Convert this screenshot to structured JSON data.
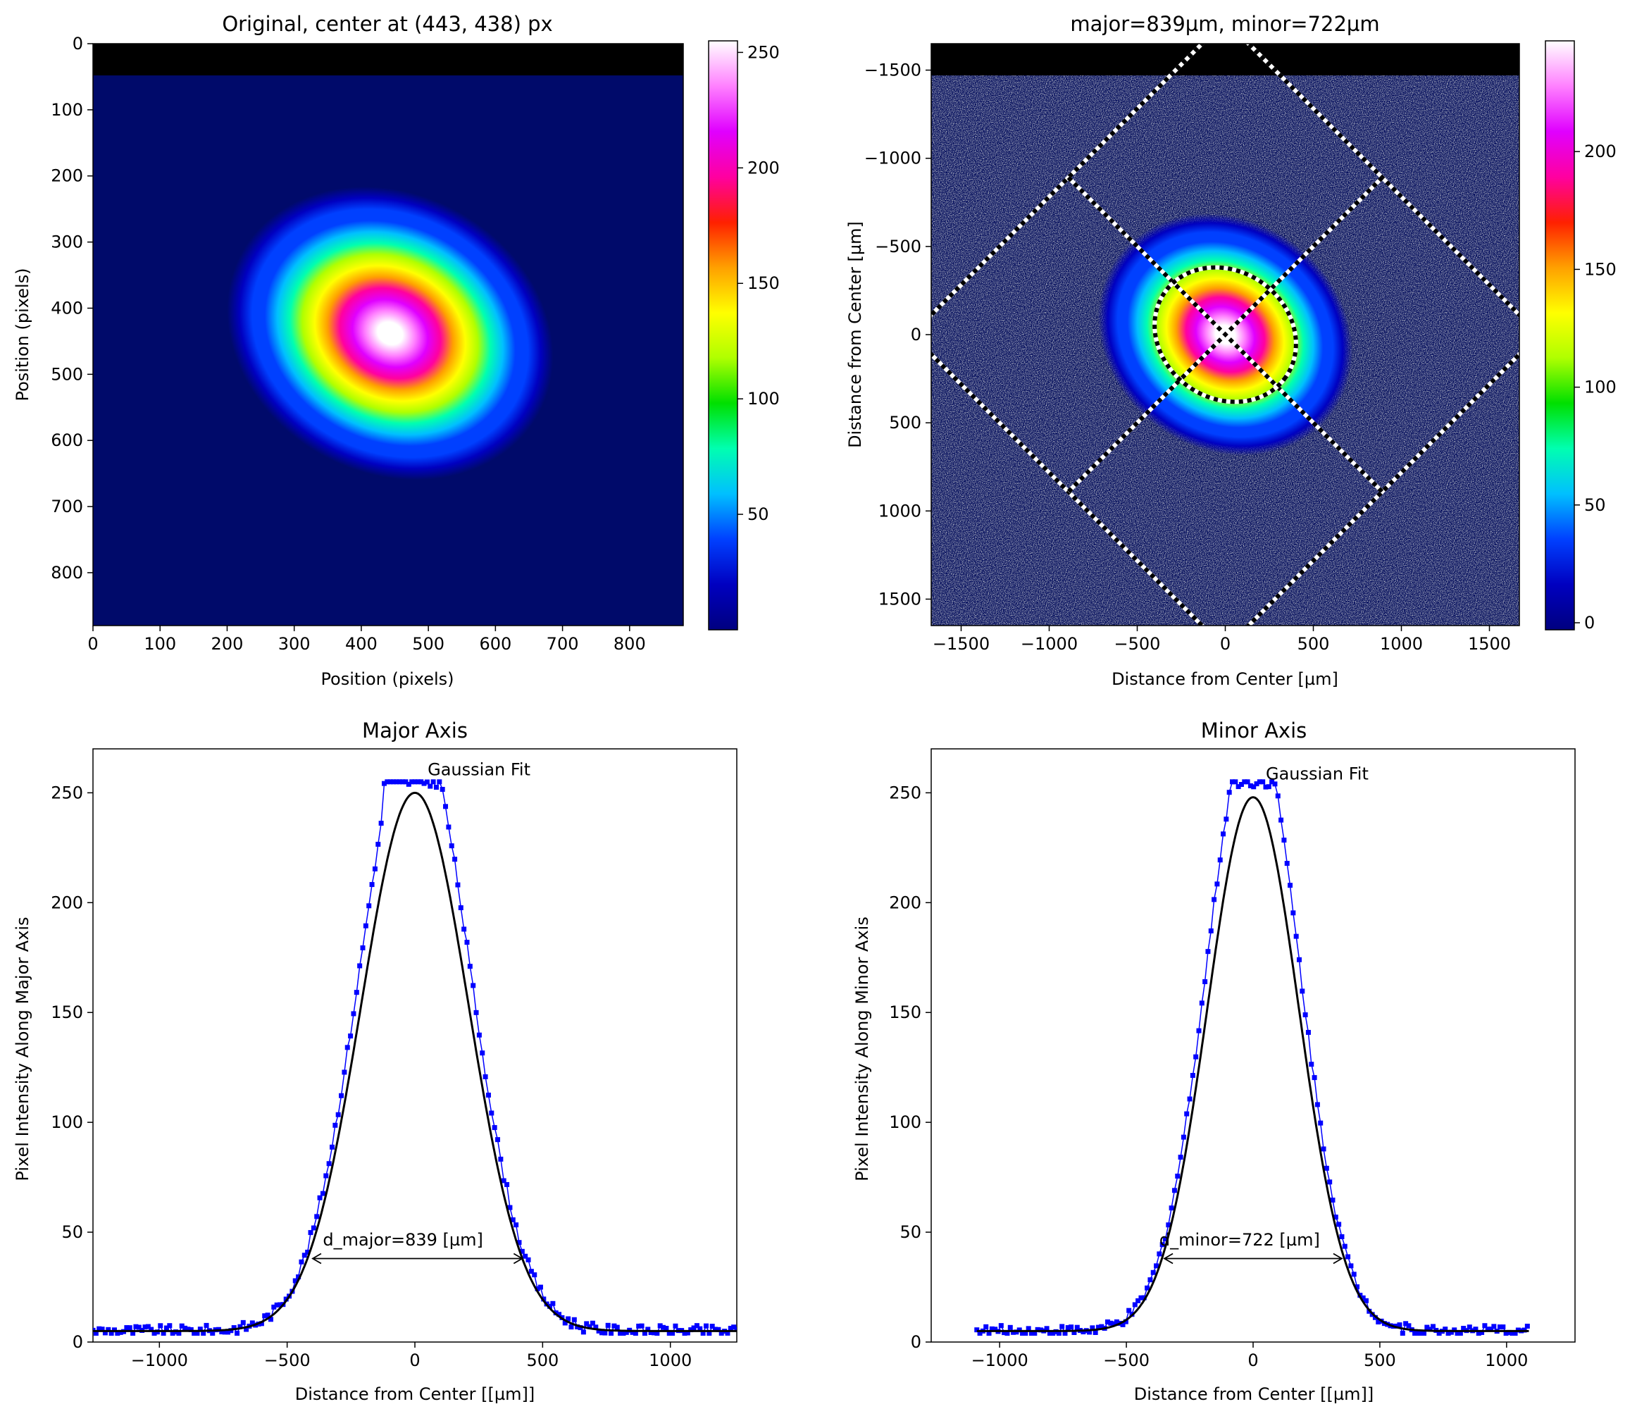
{
  "chart_data": [
    {
      "type": "heatmap",
      "panel": "original",
      "title": "Original, center at (443, 438) px",
      "xlabel": "Position (pixels)",
      "ylabel": "Position (pixels)",
      "xlim": [
        0,
        880
      ],
      "ylim": [
        880,
        0
      ],
      "xticks": [
        0,
        100,
        200,
        300,
        400,
        500,
        600,
        700,
        800
      ],
      "yticks": [
        0,
        100,
        200,
        300,
        400,
        500,
        600,
        700,
        800
      ],
      "black_band": [
        0,
        48
      ],
      "spot": {
        "cx": 443,
        "cy": 438,
        "sx": 105,
        "sy": 88,
        "angle_deg": 28,
        "peak": 255
      },
      "colorbar": {
        "range": [
          0,
          255
        ],
        "ticks": [
          50,
          100,
          150,
          200,
          250
        ]
      },
      "colormap": [
        "#000080",
        "#0000c0",
        "#0040ff",
        "#00c0ff",
        "#00ffb0",
        "#00e000",
        "#b0ff00",
        "#ffff00",
        "#ffa000",
        "#ff2000",
        "#ff00a0",
        "#e000ff",
        "#ff80ff",
        "#ffffff"
      ]
    },
    {
      "type": "heatmap",
      "panel": "analysis",
      "title": "major=839µm, minor=722µm",
      "xlabel": "Distance from Center [µm]",
      "ylabel": "Distance from Center [µm]",
      "xlim": [
        -1670,
        1670
      ],
      "ylim": [
        1650,
        -1650
      ],
      "xticks": [
        -1500,
        -1000,
        -500,
        0,
        500,
        1000,
        1500
      ],
      "yticks": [
        -1500,
        -1000,
        -500,
        0,
        500,
        1000,
        1500
      ],
      "black_band": [
        -1650,
        -1470
      ],
      "colorbar": {
        "range": [
          0,
          247
        ],
        "ticks": [
          0,
          50,
          100,
          150,
          200
        ]
      },
      "ellipse": {
        "cx": 0,
        "cy": 0,
        "major": 839,
        "minor": 722,
        "angle_deg": 35
      },
      "rotated_box": {
        "half_width": 1260,
        "angle_deg": 45,
        "center": [
          0,
          0
        ]
      }
    },
    {
      "type": "line",
      "panel": "major",
      "title": "Major Axis",
      "xlabel": "Distance from Center [[µm]]",
      "ylabel": "Pixel Intensity Along Major Axis",
      "xlim": [
        -1260,
        1260
      ],
      "ylim": [
        0,
        270
      ],
      "xticks": [
        -1000,
        -500,
        0,
        500,
        1000
      ],
      "yticks": [
        0,
        50,
        100,
        150,
        200,
        250
      ],
      "series": [
        {
          "role": "data",
          "color": "#0000ff",
          "peak": 255,
          "sigma": 210,
          "baseline": 5,
          "sat_from": -125,
          "sat_to": 85,
          "x_range": [
            -1260,
            1260
          ]
        },
        {
          "role": "fit",
          "color": "#000000",
          "peak": 250,
          "sigma": 210,
          "baseline": 5,
          "x_range": [
            -1260,
            1260
          ]
        }
      ],
      "fit_label": {
        "text": "Gaussian Fit",
        "x": 50,
        "y": 258
      },
      "width_annotation": {
        "text": "d_major=839 [µm]",
        "x1": -400,
        "x2": 420,
        "y": 38,
        "tx": -360,
        "ty": 44
      }
    },
    {
      "type": "line",
      "panel": "minor",
      "title": "Minor Axis",
      "xlabel": "Distance from Center [[µm]]",
      "ylabel": "Pixel Intensity Along Minor Axis",
      "xlim": [
        -1270,
        1270
      ],
      "ylim": [
        0,
        270
      ],
      "xticks": [
        -1000,
        -500,
        0,
        500,
        1000
      ],
      "yticks": [
        0,
        50,
        100,
        150,
        200,
        250
      ],
      "series": [
        {
          "role": "data",
          "color": "#0000ff",
          "peak": 255,
          "sigma": 180,
          "baseline": 5,
          "sat_from": -85,
          "sat_to": 85,
          "x_range": [
            -1090,
            1090
          ]
        },
        {
          "role": "fit",
          "color": "#000000",
          "peak": 248,
          "sigma": 180,
          "baseline": 5,
          "x_range": [
            -1090,
            1090
          ]
        }
      ],
      "fit_label": {
        "text": "Gaussian Fit",
        "x": 50,
        "y": 256
      },
      "width_annotation": {
        "text": "d_minor=722 [µm]",
        "x1": -350,
        "x2": 350,
        "y": 38,
        "tx": -370,
        "ty": 44
      }
    }
  ]
}
